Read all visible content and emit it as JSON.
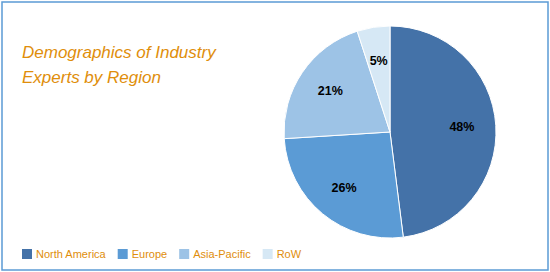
{
  "chart_data": {
    "type": "pie",
    "title": "Demographics of Industry\nExperts by Region",
    "categories": [
      "North America",
      "Europe",
      "Asia-Pacific",
      "RoW"
    ],
    "values": [
      48,
      26,
      21,
      5
    ],
    "value_labels": [
      "48%",
      "26%",
      "21%",
      "5%"
    ],
    "colors": [
      "#4472A8",
      "#5B9BD5",
      "#9DC3E6",
      "#D6E8F5"
    ],
    "data_labels": true,
    "legend": "lower left"
  }
}
